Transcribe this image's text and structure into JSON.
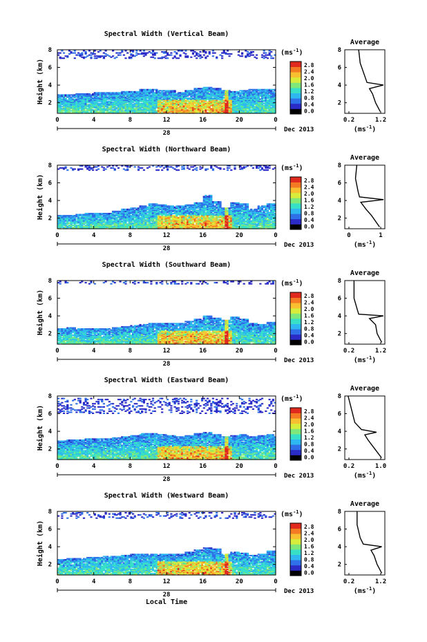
{
  "figure": {
    "xlabel": "Local Time",
    "date_day": "28",
    "date_label": "Dec 2013",
    "colorbar_unit": "(ms",
    "colorbar_unit_exp": "-1",
    "colorbar_ticks": [
      "0.0",
      "0.4",
      "0.8",
      "1.2",
      "1.6",
      "2.0",
      "2.4",
      "2.8"
    ],
    "colorscale": [
      "#000000",
      "#2b2bc8",
      "#2f6fe8",
      "#2fb8f0",
      "#39e0c8",
      "#7fe87a",
      "#d8ec3c",
      "#f8c030",
      "#f47a24",
      "#e02a1e"
    ]
  },
  "chart_data": [
    {
      "type": "heatmap",
      "title": "Spectral Width (Vertical Beam)",
      "ylabel": "Height (km)",
      "xlim": [
        0,
        24
      ],
      "ylim": [
        0.8,
        8
      ],
      "xticks": [
        "0",
        "4",
        "8",
        "12",
        "16",
        "20",
        "0"
      ],
      "yticks": [
        "2",
        "4",
        "6",
        "8"
      ],
      "zlim": [
        0,
        2.8
      ],
      "layer_top_km": [
        2.9,
        2.95,
        3.0,
        3.05,
        3.1,
        3.1,
        3.2,
        3.3,
        3.3,
        3.45,
        3.5,
        3.4,
        3.35,
        3.2,
        3.4,
        3.6,
        3.8,
        3.6,
        3.4,
        3.3,
        3.35,
        3.45,
        3.5,
        3.45,
        3.4
      ],
      "aloft_bands_km": [
        7.0,
        7.9
      ],
      "average_profile": {
        "title": "Average",
        "xlabel": "(ms",
        "xticks": [
          "0.2",
          "1.2"
        ],
        "yticks": [
          "2",
          "4",
          "6",
          "8"
        ],
        "xlim": [
          0,
          1.3
        ],
        "points": [
          [
            0.45,
            8.0
          ],
          [
            0.5,
            6.5
          ],
          [
            0.65,
            5.0
          ],
          [
            0.72,
            4.3
          ],
          [
            1.25,
            4.0
          ],
          [
            0.8,
            3.6
          ],
          [
            0.9,
            3.0
          ],
          [
            1.0,
            2.0
          ],
          [
            1.15,
            1.0
          ]
        ]
      }
    },
    {
      "type": "heatmap",
      "title": "Spectral Width (Northward Beam)",
      "ylabel": "Height (km)",
      "xlim": [
        0,
        24
      ],
      "ylim": [
        0.8,
        8
      ],
      "xticks": [
        "0",
        "4",
        "8",
        "12",
        "16",
        "20",
        "0"
      ],
      "yticks": [
        "2",
        "4",
        "6",
        "8"
      ],
      "zlim": [
        0,
        2.8
      ],
      "layer_top_km": [
        2.3,
        2.3,
        2.4,
        2.5,
        2.6,
        2.6,
        2.8,
        3.0,
        3.1,
        3.4,
        3.6,
        3.5,
        3.4,
        3.4,
        3.5,
        3.8,
        4.6,
        3.9,
        3.2,
        3.8,
        3.6,
        3.0,
        3.4,
        3.6,
        3.5
      ],
      "aloft_bands_km": [
        7.4,
        7.9
      ],
      "average_profile": {
        "title": "Average",
        "xlabel": "(ms",
        "xticks": [
          "0",
          "1"
        ],
        "yticks": [
          "2",
          "4",
          "6",
          "8"
        ],
        "xlim": [
          0,
          1.5
        ],
        "points": [
          [
            0.45,
            8.0
          ],
          [
            0.4,
            6.5
          ],
          [
            0.5,
            5.0
          ],
          [
            0.55,
            4.4
          ],
          [
            1.45,
            4.1
          ],
          [
            0.6,
            3.8
          ],
          [
            0.8,
            3.0
          ],
          [
            1.0,
            2.3
          ],
          [
            1.3,
            1.0
          ]
        ]
      }
    },
    {
      "type": "heatmap",
      "title": "Spectral Width (Southward Beam)",
      "ylabel": "Height (km)",
      "xlim": [
        0,
        24
      ],
      "ylim": [
        0.8,
        8
      ],
      "xticks": [
        "0",
        "4",
        "8",
        "12",
        "16",
        "20",
        "0"
      ],
      "yticks": [
        "2",
        "4",
        "6",
        "8"
      ],
      "zlim": [
        0,
        2.8
      ],
      "layer_top_km": [
        2.6,
        2.7,
        2.6,
        2.5,
        2.6,
        2.6,
        2.7,
        2.8,
        2.9,
        3.0,
        3.1,
        3.2,
        3.1,
        3.2,
        3.4,
        3.6,
        4.0,
        3.8,
        3.5,
        3.9,
        3.6,
        3.1,
        3.0,
        3.3,
        3.2
      ],
      "aloft_bands_km": [
        7.6,
        7.9
      ],
      "average_profile": {
        "title": "Average",
        "xlabel": "(ms",
        "xticks": [
          "0.2",
          "1.2"
        ],
        "yticks": [
          "2",
          "4",
          "6",
          "8"
        ],
        "xlim": [
          0,
          1.3
        ],
        "points": [
          [
            0.3,
            8.0
          ],
          [
            0.3,
            6.0
          ],
          [
            0.4,
            4.8
          ],
          [
            0.45,
            4.2
          ],
          [
            1.25,
            4.0
          ],
          [
            0.8,
            3.7
          ],
          [
            1.0,
            3.0
          ],
          [
            1.05,
            2.0
          ],
          [
            1.2,
            1.0
          ]
        ]
      }
    },
    {
      "type": "heatmap",
      "title": "Spectral Width (Eastward Beam)",
      "ylabel": "Height (km)",
      "xlim": [
        0,
        24
      ],
      "ylim": [
        0.8,
        8
      ],
      "xticks": [
        "0",
        "4",
        "8",
        "12",
        "16",
        "20",
        "0"
      ],
      "yticks": [
        "2",
        "4",
        "6",
        "8"
      ],
      "zlim": [
        0,
        2.8
      ],
      "layer_top_km": [
        2.9,
        3.0,
        3.0,
        3.1,
        3.1,
        3.1,
        3.3,
        3.4,
        3.5,
        3.7,
        3.8,
        3.6,
        3.5,
        3.4,
        3.5,
        3.7,
        3.9,
        3.6,
        3.4,
        3.5,
        3.6,
        3.4,
        3.5,
        3.6,
        3.5
      ],
      "aloft_bands_km": [
        6.0,
        7.8
      ],
      "average_profile": {
        "title": "Average",
        "xlabel": "(ms",
        "xticks": [
          "0.2",
          "1.0"
        ],
        "yticks": [
          "2",
          "4",
          "6",
          "8"
        ],
        "xlim": [
          0,
          1.2
        ],
        "points": [
          [
            0.1,
            8.0
          ],
          [
            0.2,
            6.5
          ],
          [
            0.3,
            5.0
          ],
          [
            0.5,
            4.2
          ],
          [
            0.95,
            3.9
          ],
          [
            0.6,
            3.6
          ],
          [
            0.7,
            3.0
          ],
          [
            0.9,
            2.0
          ],
          [
            1.1,
            1.0
          ]
        ]
      }
    },
    {
      "type": "heatmap",
      "title": "Spectral Width (Westward Beam)",
      "ylabel": "Height (km)",
      "xlim": [
        0,
        24
      ],
      "ylim": [
        0.8,
        8
      ],
      "xticks": [
        "0",
        "4",
        "8",
        "12",
        "16",
        "20",
        "0"
      ],
      "yticks": [
        "2",
        "4",
        "6",
        "8"
      ],
      "zlim": [
        0,
        2.8
      ],
      "layer_top_km": [
        2.6,
        2.7,
        2.7,
        2.8,
        2.8,
        2.9,
        2.9,
        3.0,
        3.1,
        3.2,
        3.2,
        3.1,
        3.1,
        3.2,
        3.4,
        3.6,
        3.9,
        3.7,
        3.2,
        3.4,
        3.3,
        3.0,
        3.1,
        3.5,
        3.4
      ],
      "aloft_bands_km": [
        7.2,
        7.9
      ],
      "average_profile": {
        "title": "Average",
        "xlabel": "(ms",
        "xticks": [
          "0.2",
          "1.2"
        ],
        "yticks": [
          "2",
          "4",
          "6",
          "8"
        ],
        "xlim": [
          0,
          1.3
        ],
        "points": [
          [
            0.4,
            8.0
          ],
          [
            0.4,
            6.5
          ],
          [
            0.5,
            5.0
          ],
          [
            0.6,
            4.3
          ],
          [
            1.2,
            4.0
          ],
          [
            0.85,
            3.6
          ],
          [
            0.95,
            3.0
          ],
          [
            1.05,
            2.0
          ],
          [
            1.2,
            1.0
          ]
        ]
      }
    }
  ]
}
